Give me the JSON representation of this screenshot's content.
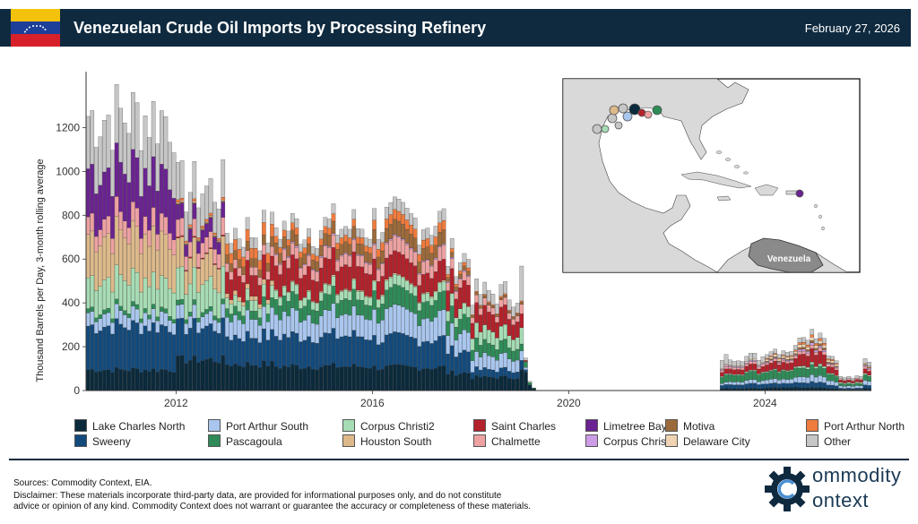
{
  "header": {
    "title": "Venezuelan Crude Oil Imports by Processing Refinery",
    "date": "February 27, 2026"
  },
  "colors": {
    "header_bg": "#0f2a3f",
    "flag": [
      "#f4c20d",
      "#1d3f9a",
      "#d7202a"
    ]
  },
  "map": {
    "country_label": "Venezuela"
  },
  "chart_data": {
    "type": "bar",
    "stacked": true,
    "ylabel": "Thousand Barrels per Day, 3-month rolling average",
    "xlabel": "",
    "ylim": [
      0,
      1400
    ],
    "yticks": [
      0,
      200,
      400,
      600,
      800,
      1000,
      1200
    ],
    "xticks": [
      "2012",
      "2016",
      "2020",
      "2024"
    ],
    "x_range": [
      "2010-03",
      "2026-02"
    ],
    "frequency": "monthly",
    "legend_position": "bottom",
    "series": [
      {
        "name": "Lake Charles North",
        "color": "#0b2a3c"
      },
      {
        "name": "Sweeny",
        "color": "#134a7c"
      },
      {
        "name": "Port Arthur South",
        "color": "#a9c6ee"
      },
      {
        "name": "Pascagoula",
        "color": "#2e8b57"
      },
      {
        "name": "Corpus Christi2",
        "color": "#a6dcb4"
      },
      {
        "name": "Houston South",
        "color": "#ddb98a"
      },
      {
        "name": "Saint Charles",
        "color": "#b3222b"
      },
      {
        "name": "Chalmette",
        "color": "#eda1a1"
      },
      {
        "name": "Limetree Bay",
        "color": "#6a2391"
      },
      {
        "name": "Corpus Christi",
        "color": "#cc9de6"
      },
      {
        "name": "Motiva",
        "color": "#9c6a3a"
      },
      {
        "name": "Delaware City",
        "color": "#efd3b2"
      },
      {
        "name": "Port Arthur North",
        "color": "#ef7b3d"
      },
      {
        "name": "Other",
        "color": "#c6c6c6"
      }
    ],
    "segments": [
      {
        "start": "2010-03",
        "end": "2011-12",
        "values": [
          95,
          200,
          60,
          20,
          140,
          200,
          0,
          80,
          220,
          0,
          0,
          0,
          0,
          240
        ]
      },
      {
        "start": "2012-01",
        "end": "2012-12",
        "values": [
          140,
          150,
          55,
          20,
          130,
          120,
          5,
          70,
          60,
          0,
          5,
          5,
          10,
          150
        ]
      },
      {
        "start": "2013-01",
        "end": "2013-12",
        "values": [
          120,
          130,
          90,
          40,
          50,
          20,
          100,
          40,
          0,
          0,
          40,
          0,
          50,
          50
        ]
      },
      {
        "start": "2014-01",
        "end": "2015-12",
        "values": [
          110,
          140,
          100,
          70,
          40,
          5,
          110,
          50,
          0,
          5,
          50,
          0,
          30,
          40
        ]
      },
      {
        "start": "2016-01",
        "end": "2017-06",
        "values": [
          105,
          130,
          110,
          80,
          40,
          5,
          90,
          60,
          0,
          5,
          60,
          0,
          40,
          50
        ]
      },
      {
        "start": "2017-07",
        "end": "2017-12",
        "values": [
          80,
          100,
          90,
          70,
          50,
          0,
          100,
          40,
          0,
          5,
          20,
          0,
          15,
          40
        ]
      },
      {
        "start": "2018-01",
        "end": "2018-12",
        "values": [
          60,
          35,
          60,
          55,
          60,
          0,
          80,
          30,
          0,
          0,
          10,
          0,
          5,
          50
        ]
      },
      {
        "start": "2019-01",
        "end": "2019-01",
        "values": [
          90,
          40,
          40,
          30,
          70,
          0,
          60,
          40,
          0,
          0,
          10,
          0,
          5,
          150
        ]
      },
      {
        "start": "2019-02",
        "end": "2019-02",
        "values": [
          80,
          10,
          10,
          25,
          0,
          0,
          5,
          0,
          0,
          0,
          0,
          0,
          0,
          10
        ]
      },
      {
        "start": "2019-03",
        "end": "2019-03",
        "values": [
          25,
          0,
          0,
          10,
          0,
          0,
          0,
          0,
          0,
          0,
          0,
          0,
          0,
          5
        ]
      },
      {
        "start": "2019-04",
        "end": "2019-04",
        "values": [
          8,
          0,
          0,
          3,
          0,
          0,
          0,
          0,
          0,
          0,
          0,
          0,
          0,
          0
        ]
      },
      {
        "start": "2023-02",
        "end": "2023-03",
        "values": [
          10,
          15,
          10,
          30,
          5,
          0,
          20,
          10,
          0,
          5,
          0,
          5,
          0,
          40
        ]
      },
      {
        "start": "2023-04",
        "end": "2023-12",
        "values": [
          10,
          20,
          15,
          35,
          5,
          0,
          25,
          10,
          0,
          5,
          0,
          5,
          0,
          25
        ]
      },
      {
        "start": "2024-01",
        "end": "2024-08",
        "values": [
          15,
          20,
          20,
          40,
          5,
          0,
          35,
          10,
          0,
          5,
          5,
          10,
          5,
          20
        ]
      },
      {
        "start": "2024-09",
        "end": "2025-03",
        "values": [
          15,
          25,
          30,
          45,
          10,
          0,
          60,
          15,
          0,
          10,
          10,
          15,
          10,
          25
        ]
      },
      {
        "start": "2025-04",
        "end": "2025-06",
        "values": [
          10,
          15,
          20,
          30,
          5,
          0,
          30,
          10,
          0,
          5,
          5,
          10,
          5,
          15
        ]
      },
      {
        "start": "2025-07",
        "end": "2025-12",
        "values": [
          5,
          5,
          10,
          10,
          5,
          0,
          10,
          5,
          0,
          0,
          0,
          0,
          0,
          10
        ]
      },
      {
        "start": "2026-01",
        "end": "2026-02",
        "values": [
          10,
          15,
          20,
          25,
          5,
          0,
          20,
          10,
          0,
          5,
          5,
          5,
          0,
          20
        ]
      }
    ]
  },
  "footer": {
    "sources": "Sources: Commodity Context, EIA.",
    "disclaimer_1": "Disclaimer: These materials incorporate third-party data, are provided for informational purposes only, and do not constitute",
    "disclaimer_2": "advice or opinion of any kind. Commodity Context does not warrant or guarantee the accuracy or completeness of these materials."
  },
  "logo": {
    "line1": "ommodity",
    "line2": "ontext"
  }
}
